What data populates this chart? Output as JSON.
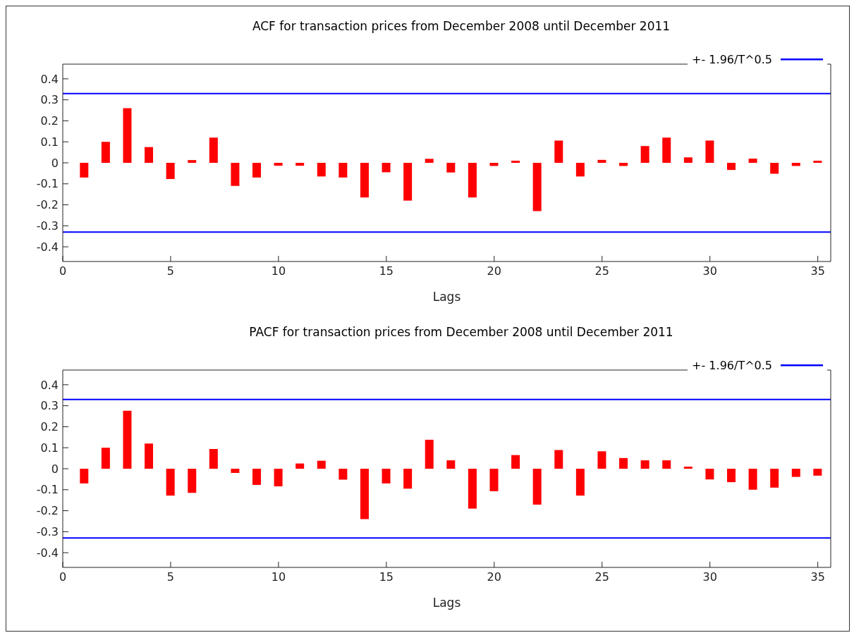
{
  "chart_data": [
    {
      "type": "bar",
      "title": "ACF for transaction prices from December 2008 until December 2011",
      "xlabel": "Lags",
      "x": [
        1,
        2,
        3,
        4,
        5,
        6,
        7,
        8,
        9,
        10,
        11,
        12,
        13,
        14,
        15,
        16,
        17,
        18,
        19,
        20,
        21,
        22,
        23,
        24,
        25,
        26,
        27,
        28,
        29,
        30,
        31,
        32,
        33,
        34,
        35
      ],
      "values": [
        -0.07,
        0.1,
        0.26,
        0.075,
        -0.077,
        0.013,
        0.12,
        -0.11,
        -0.07,
        -0.014,
        -0.014,
        -0.065,
        -0.07,
        -0.165,
        -0.045,
        -0.18,
        0.019,
        -0.046,
        -0.165,
        -0.015,
        0.01,
        -0.23,
        0.106,
        -0.065,
        0.014,
        -0.015,
        0.08,
        0.12,
        0.026,
        0.106,
        -0.034,
        0.02,
        -0.052,
        -0.015,
        0.01
      ],
      "color": "#ff0000",
      "xlim": [
        0,
        35.6
      ],
      "xticks": [
        0,
        5,
        10,
        15,
        20,
        25,
        30,
        35
      ],
      "ylim": [
        -0.47,
        0.47
      ],
      "yticks": [
        -0.4,
        -0.3,
        -0.2,
        -0.1,
        0,
        0.1,
        0.2,
        0.3,
        0.4
      ],
      "ref_lines": [
        {
          "axis": "y",
          "value": 0.33,
          "label": "+- 1.96/T^0.5",
          "color": "#0000ff"
        },
        {
          "axis": "y",
          "value": -0.33,
          "color": "#0000ff"
        }
      ],
      "legend": "top right"
    },
    {
      "type": "bar",
      "title": "PACF for transaction prices from December 2008 until December 2011",
      "xlabel": "Lags",
      "x": [
        1,
        2,
        3,
        4,
        5,
        6,
        7,
        8,
        9,
        10,
        11,
        12,
        13,
        14,
        15,
        16,
        17,
        18,
        19,
        20,
        21,
        22,
        23,
        24,
        25,
        26,
        27,
        28,
        29,
        30,
        31,
        32,
        33,
        34,
        35
      ],
      "values": [
        -0.07,
        0.1,
        0.276,
        0.12,
        -0.128,
        -0.115,
        0.094,
        -0.02,
        -0.077,
        -0.084,
        0.025,
        0.038,
        -0.052,
        -0.24,
        -0.07,
        -0.095,
        0.138,
        0.04,
        -0.19,
        -0.107,
        0.065,
        -0.171,
        0.089,
        -0.128,
        0.083,
        0.051,
        0.04,
        0.04,
        0.01,
        -0.051,
        -0.064,
        -0.1,
        -0.09,
        -0.039,
        -0.033
      ],
      "color": "#ff0000",
      "xlim": [
        0,
        35.6
      ],
      "xticks": [
        0,
        5,
        10,
        15,
        20,
        25,
        30,
        35
      ],
      "ylim": [
        -0.47,
        0.47
      ],
      "yticks": [
        -0.4,
        -0.3,
        -0.2,
        -0.1,
        0,
        0.1,
        0.2,
        0.3,
        0.4
      ],
      "ref_lines": [
        {
          "axis": "y",
          "value": 0.33,
          "label": "+- 1.96/T^0.5",
          "color": "#0000ff"
        },
        {
          "axis": "y",
          "value": -0.33,
          "color": "#0000ff"
        }
      ],
      "legend": "top right"
    }
  ]
}
